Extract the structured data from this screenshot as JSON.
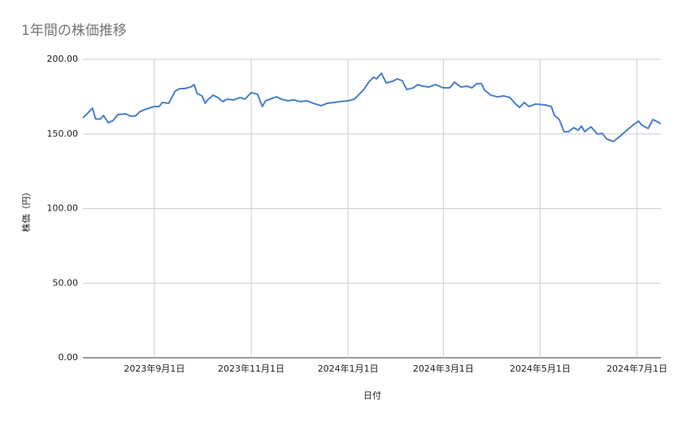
{
  "chart_data": {
    "type": "line",
    "title": "1年間の株価推移",
    "x_label": "日付",
    "y_label": "株価（円）",
    "color": "#4a7fc7",
    "grid": true,
    "xlim": [
      "2023-07-18",
      "2024-07-16"
    ],
    "xticks": [
      {
        "value": "2023-09-01",
        "label": "2023年9月1日"
      },
      {
        "value": "2023-11-01",
        "label": "2023年11月1日"
      },
      {
        "value": "2024-01-01",
        "label": "2024年1月1日"
      },
      {
        "value": "2024-03-01",
        "label": "2024年3月1日"
      },
      {
        "value": "2024-05-01",
        "label": "2024年5月1日"
      },
      {
        "value": "2024-07-01",
        "label": "2024年7月1日"
      }
    ],
    "ylim": [
      0,
      200
    ],
    "yticks": [
      {
        "value": 0,
        "label": "0.00"
      },
      {
        "value": 50,
        "label": "50.00"
      },
      {
        "value": 100,
        "label": "100.00"
      },
      {
        "value": 150,
        "label": "150.00"
      },
      {
        "value": 200,
        "label": "200.00"
      }
    ],
    "x": [
      "2023-07-18",
      "2023-07-22",
      "2023-07-24",
      "2023-07-26",
      "2023-07-29",
      "2023-07-31",
      "2023-08-03",
      "2023-08-06",
      "2023-08-09",
      "2023-08-14",
      "2023-08-17",
      "2023-08-20",
      "2023-08-23",
      "2023-08-27",
      "2023-09-01",
      "2023-09-04",
      "2023-09-06",
      "2023-09-10",
      "2023-09-12",
      "2023-09-14",
      "2023-09-17",
      "2023-09-20",
      "2023-09-24",
      "2023-09-26",
      "2023-09-28",
      "2023-10-01",
      "2023-10-03",
      "2023-10-05",
      "2023-10-08",
      "2023-10-11",
      "2023-10-14",
      "2023-10-17",
      "2023-10-21",
      "2023-10-25",
      "2023-10-28",
      "2023-11-01",
      "2023-11-05",
      "2023-11-08",
      "2023-11-10",
      "2023-11-14",
      "2023-11-17",
      "2023-11-20",
      "2023-11-24",
      "2023-11-28",
      "2023-12-02",
      "2023-12-06",
      "2023-12-10",
      "2023-12-15",
      "2023-12-19",
      "2023-12-23",
      "2023-12-27",
      "2024-01-01",
      "2024-01-05",
      "2024-01-08",
      "2024-01-11",
      "2024-01-14",
      "2024-01-17",
      "2024-01-19",
      "2024-01-22",
      "2024-01-25",
      "2024-01-29",
      "2024-02-01",
      "2024-02-04",
      "2024-02-07",
      "2024-02-11",
      "2024-02-14",
      "2024-02-17",
      "2024-02-21",
      "2024-02-25",
      "2024-03-01",
      "2024-03-05",
      "2024-03-08",
      "2024-03-12",
      "2024-03-16",
      "2024-03-19",
      "2024-03-22",
      "2024-03-25",
      "2024-03-27",
      "2024-03-31",
      "2024-04-04",
      "2024-04-08",
      "2024-04-12",
      "2024-04-15",
      "2024-04-18",
      "2024-04-21",
      "2024-04-24",
      "2024-04-28",
      "2024-05-04",
      "2024-05-08",
      "2024-05-10",
      "2024-05-13",
      "2024-05-16",
      "2024-05-19",
      "2024-05-22",
      "2024-05-25",
      "2024-05-27",
      "2024-05-29",
      "2024-06-02",
      "2024-06-06",
      "2024-06-09",
      "2024-06-12",
      "2024-06-16",
      "2024-06-20",
      "2024-06-24",
      "2024-06-29",
      "2024-07-02",
      "2024-07-04",
      "2024-07-08",
      "2024-07-11",
      "2024-07-14",
      "2024-07-16"
    ],
    "values": [
      160.8,
      165,
      167.3,
      160,
      160,
      162.4,
      157.5,
      159,
      163,
      163.5,
      162,
      162,
      165,
      166.8,
      168.4,
      168.4,
      171.1,
      170.6,
      174.4,
      178.7,
      180.4,
      180.4,
      181.5,
      183.1,
      177.1,
      175.5,
      170.6,
      173.3,
      176,
      174.4,
      171.7,
      173.3,
      172.8,
      174.4,
      173.3,
      177.7,
      176.6,
      168.4,
      172.2,
      173.8,
      174.9,
      173.3,
      172.2,
      172.8,
      171.7,
      172.2,
      170.6,
      168.9,
      170.6,
      171.1,
      171.7,
      172.2,
      173.3,
      176.6,
      179.8,
      184.7,
      188,
      186.9,
      190.7,
      184.2,
      185.3,
      186.9,
      185.8,
      179.8,
      180.9,
      183.1,
      182,
      181.5,
      183.1,
      180.9,
      180.9,
      184.7,
      181.5,
      182,
      180.9,
      183.7,
      183.7,
      179.3,
      176,
      174.9,
      175.5,
      174.4,
      170.6,
      167.8,
      171.1,
      168.4,
      170,
      169.5,
      168.4,
      162.4,
      159.7,
      151.5,
      151.5,
      154.2,
      152.6,
      155.3,
      151.5,
      154.8,
      149.9,
      150.4,
      146.6,
      144.9,
      148.2,
      152,
      156.4,
      158.6,
      155.9,
      153.7,
      159.7,
      158,
      156.9
    ]
  }
}
